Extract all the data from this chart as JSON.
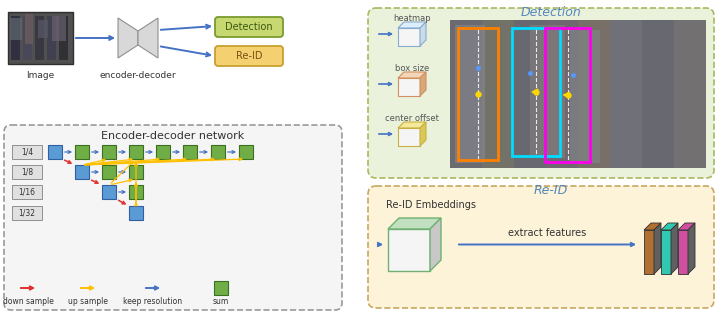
{
  "bg_color": "#ffffff",
  "blue_c": "#4472c4",
  "green_c": "#70ad47",
  "blue_node_c": "#5b9bd5",
  "red_c": "#e03030",
  "orange_c": "#ffc000",
  "det_box_fc": "#c8d870",
  "det_box_ec": "#7a9a30",
  "reid_box_fc": "#f5d070",
  "reid_box_ec": "#c8a030",
  "enc_panel_fc": "#f5f5f5",
  "enc_panel_ec": "#999999",
  "det_panel_fc": "#eaf2dc",
  "det_panel_ec": "#aab860",
  "reid_panel_fc": "#fdf3d8",
  "reid_panel_ec": "#c8a860",
  "scale_labels": [
    "1/4",
    "1/8",
    "1/16",
    "1/32"
  ],
  "legend_labels": [
    "down sample",
    "up sample",
    "keep resolution",
    "sum"
  ],
  "heatmap_cube_fc": "#ddeeff",
  "heatmap_cube_ec": "#88aacc",
  "boxsize_cube_fc": "#f5d5b8",
  "boxsize_cube_ec": "#d09060",
  "offset_cube_fc": "#f5e898",
  "offset_cube_ec": "#c8b040",
  "reid_cube_fc_top": "#c0e0c0",
  "reid_cube_ec": "#70b070",
  "strip_colors": [
    "#b07030",
    "#30c8b0",
    "#d050a0"
  ]
}
